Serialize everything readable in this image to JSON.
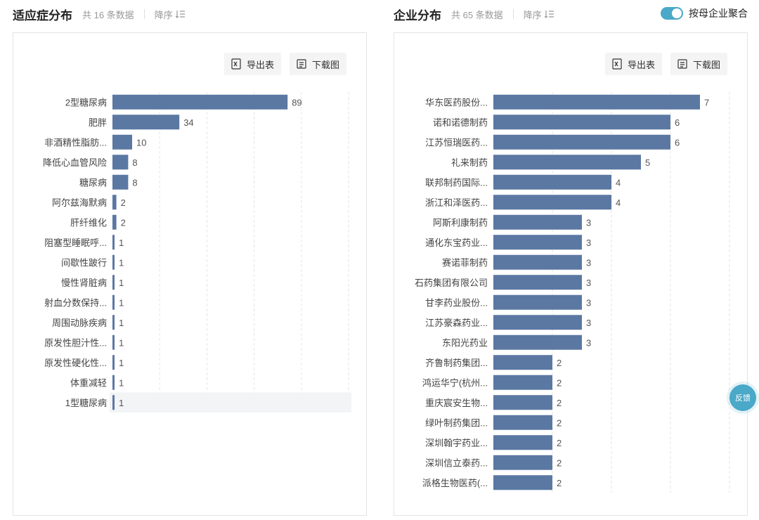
{
  "left": {
    "title": "适应症分布",
    "count": "共 16 条数据",
    "sort_label": "降序",
    "export_label": "导出表",
    "download_label": "下载图",
    "chart_data": {
      "type": "bar",
      "orientation": "horizontal",
      "categories": [
        "2型糖尿病",
        "肥胖",
        "非酒精性脂肪...",
        "降低心血管风险",
        "糖尿病",
        "阿尔兹海默病",
        "肝纤维化",
        "阻塞型睡眠呼...",
        "间歇性跛行",
        "慢性肾脏病",
        "射血分数保持...",
        "周围动脉疾病",
        "原发性胆汁性...",
        "原发性硬化性...",
        "体重减轻",
        "1型糖尿病"
      ],
      "values": [
        89,
        34,
        10,
        8,
        8,
        2,
        2,
        1,
        1,
        1,
        1,
        1,
        1,
        1,
        1,
        1
      ],
      "xlim": [
        0,
        120
      ],
      "grid": true,
      "highlighted_index": 15
    }
  },
  "right": {
    "title": "企业分布",
    "count": "共 65 条数据",
    "sort_label": "降序",
    "toggle_label": "按母企业聚合",
    "toggle_on": true,
    "export_label": "导出表",
    "download_label": "下载图",
    "chart_data": {
      "type": "bar",
      "orientation": "horizontal",
      "categories": [
        "华东医药股份...",
        "诺和诺德制药",
        "江苏恒瑞医药...",
        "礼来制药",
        "联邦制药国际...",
        "浙江和泽医药...",
        "阿斯利康制药",
        "通化东宝药业...",
        "赛诺菲制药",
        "石药集团有限公司",
        "甘李药业股份...",
        "江苏豪森药业...",
        "东阳光药业",
        "齐鲁制药集团...",
        "鸿运华宁(杭州...",
        "重庆宸安生物...",
        "绿叶制药集团...",
        "深圳翰宇药业...",
        "深圳信立泰药...",
        "派格生物医药(..."
      ],
      "values": [
        7,
        6,
        6,
        5,
        4,
        4,
        3,
        3,
        3,
        3,
        3,
        3,
        3,
        2,
        2,
        2,
        2,
        2,
        2,
        2
      ],
      "xlim": [
        0,
        8
      ],
      "grid": true
    }
  },
  "feedback_label": "反馈",
  "colors": {
    "bar": "#5b78a3",
    "accent": "#4aa8c8",
    "grid": "#e6e6e6",
    "highlight_row": "#f2f4f5"
  }
}
